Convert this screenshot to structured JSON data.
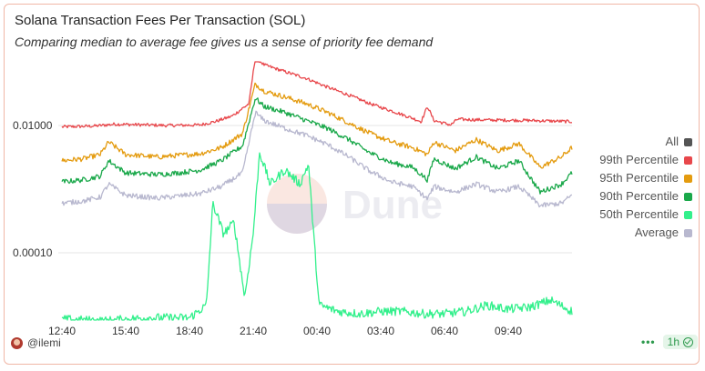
{
  "chart_title": "Solana Transaction Fees Per Transaction (SOL)",
  "chart_subtitle": "Comparing median to average fee gives us a sense of priority fee demand",
  "watermark": "Dune",
  "legend": {
    "all_label": "All",
    "all_color": "#555555"
  },
  "footer": {
    "author": "@ilemi",
    "dots": "•••",
    "refresh": "1h"
  },
  "chart_data": {
    "type": "line",
    "x_tick_labels": [
      "12:40",
      "15:40",
      "18:40",
      "21:40",
      "00:40",
      "03:40",
      "06:40",
      "09:40"
    ],
    "x_range_hours": [
      0,
      24
    ],
    "x_ticks_hours": [
      0,
      3,
      6,
      9,
      12,
      15,
      18,
      21
    ],
    "y_scale": "log",
    "y_range": [
      1e-05,
      0.1
    ],
    "y_tick_values": [
      0.0001,
      0.01
    ],
    "y_tick_labels": [
      "0.00010",
      "0.01000"
    ],
    "grid": true,
    "legend_position": "right",
    "series": [
      {
        "name": "99th Percentile",
        "color": "#e8474b",
        "points": [
          [
            0,
            0.0095
          ],
          [
            1.5,
            0.0098
          ],
          [
            2.5,
            0.0105
          ],
          [
            5,
            0.01
          ],
          [
            6.5,
            0.0102
          ],
          [
            7.2,
            0.0115
          ],
          [
            8,
            0.014
          ],
          [
            8.8,
            0.022
          ],
          [
            9.1,
            0.12
          ],
          [
            9.5,
            0.09
          ],
          [
            10.5,
            0.07
          ],
          [
            11.5,
            0.055
          ],
          [
            12.5,
            0.04
          ],
          [
            13.5,
            0.03
          ],
          [
            14.5,
            0.022
          ],
          [
            15.5,
            0.017
          ],
          [
            16.5,
            0.013
          ],
          [
            16.9,
            0.0115
          ],
          [
            17.2,
            0.02
          ],
          [
            17.5,
            0.012
          ],
          [
            18.3,
            0.0102
          ],
          [
            18.6,
            0.0125
          ],
          [
            20,
            0.0122
          ],
          [
            22,
            0.012
          ],
          [
            24,
            0.0115
          ]
        ]
      },
      {
        "name": "95th Percentile",
        "color": "#e49b0f",
        "points": [
          [
            0,
            0.0028
          ],
          [
            1,
            0.003
          ],
          [
            1.8,
            0.0035
          ],
          [
            2.2,
            0.0055
          ],
          [
            3,
            0.0035
          ],
          [
            4.5,
            0.0032
          ],
          [
            5.5,
            0.0034
          ],
          [
            6.5,
            0.0036
          ],
          [
            7.5,
            0.0045
          ],
          [
            8.5,
            0.0075
          ],
          [
            9.1,
            0.045
          ],
          [
            9.5,
            0.035
          ],
          [
            10.5,
            0.028
          ],
          [
            11.5,
            0.022
          ],
          [
            12.5,
            0.016
          ],
          [
            13.5,
            0.011
          ],
          [
            14.5,
            0.0075
          ],
          [
            15.5,
            0.0055
          ],
          [
            16.5,
            0.0045
          ],
          [
            17.2,
            0.0035
          ],
          [
            17.5,
            0.0055
          ],
          [
            18.5,
            0.004
          ],
          [
            19.5,
            0.006
          ],
          [
            20.5,
            0.004
          ],
          [
            21.5,
            0.0052
          ],
          [
            22.5,
            0.0022
          ],
          [
            23.5,
            0.0032
          ],
          [
            24,
            0.0045
          ]
        ]
      },
      {
        "name": "90th Percentile",
        "color": "#1aa84a",
        "points": [
          [
            0,
            0.0013
          ],
          [
            1,
            0.0014
          ],
          [
            1.8,
            0.0016
          ],
          [
            2.2,
            0.0028
          ],
          [
            3,
            0.0018
          ],
          [
            4.5,
            0.0017
          ],
          [
            5.5,
            0.0018
          ],
          [
            6.5,
            0.002
          ],
          [
            7.5,
            0.0028
          ],
          [
            8.5,
            0.0048
          ],
          [
            9.1,
            0.027
          ],
          [
            9.5,
            0.02
          ],
          [
            10.5,
            0.016
          ],
          [
            11.5,
            0.012
          ],
          [
            12.5,
            0.009
          ],
          [
            13.5,
            0.006
          ],
          [
            14.5,
            0.0037
          ],
          [
            15.5,
            0.0026
          ],
          [
            16.5,
            0.0022
          ],
          [
            17.2,
            0.0014
          ],
          [
            17.5,
            0.003
          ],
          [
            18.5,
            0.0021
          ],
          [
            19.5,
            0.0032
          ],
          [
            20.5,
            0.0021
          ],
          [
            21.5,
            0.0028
          ],
          [
            22.5,
            0.0009
          ],
          [
            23.5,
            0.0012
          ],
          [
            24,
            0.0018
          ]
        ]
      },
      {
        "name": "50th Percentile",
        "color": "#33f08c",
        "points": [
          [
            0,
            9e-06
          ],
          [
            2,
            8.5e-06
          ],
          [
            4,
            9.5e-06
          ],
          [
            6,
            9.5e-06
          ],
          [
            6.8,
            1.5e-05
          ],
          [
            7.1,
            0.0006
          ],
          [
            7.6,
            0.0002
          ],
          [
            8.1,
            0.0003
          ],
          [
            8.6,
            2e-05
          ],
          [
            9.0,
            0.0002
          ],
          [
            9.3,
            0.0038
          ],
          [
            9.8,
            0.0012
          ],
          [
            10.5,
            0.002
          ],
          [
            11.2,
            0.0012
          ],
          [
            11.6,
            0.0025
          ],
          [
            11.8,
            0.0003
          ],
          [
            12.1,
            1.5e-05
          ],
          [
            13,
            1.2e-05
          ],
          [
            14,
            1.1e-05
          ],
          [
            15,
            1.2e-05
          ],
          [
            16,
            1.2e-05
          ],
          [
            17,
            1.1e-05
          ],
          [
            18,
            1.1e-05
          ],
          [
            19,
            1.2e-05
          ],
          [
            20,
            1.5e-05
          ],
          [
            21,
            1.3e-05
          ],
          [
            22,
            1.4e-05
          ],
          [
            23,
            1.8e-05
          ],
          [
            24,
            1.2e-05
          ]
        ]
      },
      {
        "name": "Average",
        "color": "#b8b8cf",
        "points": [
          [
            0,
            0.0006
          ],
          [
            1,
            0.00065
          ],
          [
            1.8,
            0.00075
          ],
          [
            2.2,
            0.0012
          ],
          [
            3,
            0.0008
          ],
          [
            4.5,
            0.00072
          ],
          [
            5.5,
            0.00078
          ],
          [
            6.5,
            0.00085
          ],
          [
            7.5,
            0.0011
          ],
          [
            8.5,
            0.0018
          ],
          [
            9.1,
            0.016
          ],
          [
            9.5,
            0.012
          ],
          [
            10.5,
            0.009
          ],
          [
            11.5,
            0.007
          ],
          [
            12.5,
            0.005
          ],
          [
            13.5,
            0.0032
          ],
          [
            14.5,
            0.0019
          ],
          [
            15.5,
            0.0013
          ],
          [
            16.5,
            0.0011
          ],
          [
            17.2,
            0.0007
          ],
          [
            17.5,
            0.0011
          ],
          [
            18.5,
            0.0009
          ],
          [
            19.5,
            0.0012
          ],
          [
            20.5,
            0.0009
          ],
          [
            21.5,
            0.0011
          ],
          [
            22.5,
            0.00055
          ],
          [
            23.5,
            0.0006
          ],
          [
            24,
            0.0008
          ]
        ]
      }
    ]
  }
}
